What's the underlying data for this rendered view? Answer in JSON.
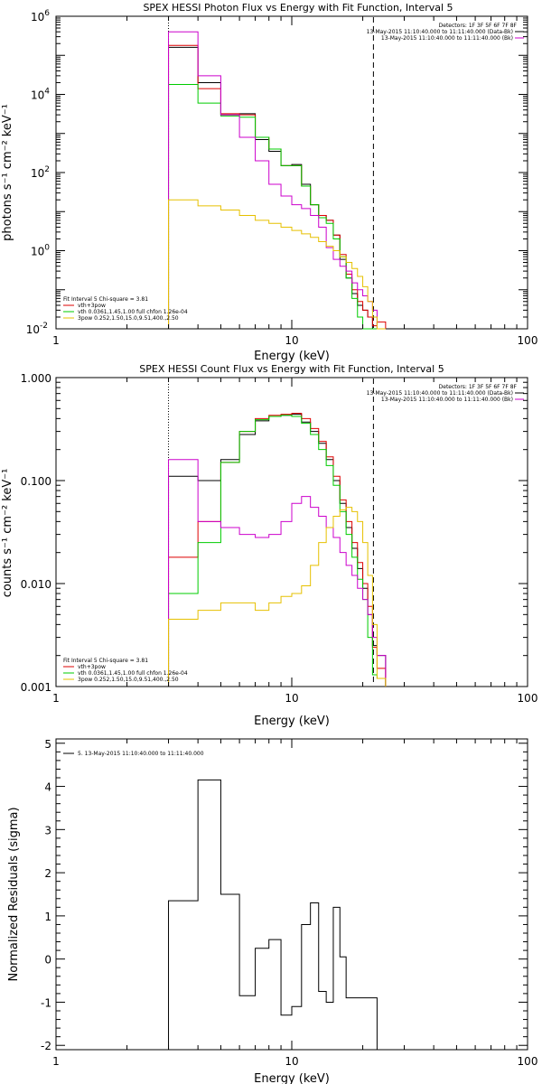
{
  "chart_data": [
    {
      "type": "line",
      "title": "SPEX HESSI Photon Flux vs Energy with Fit Function, Interval 5",
      "xlabel": "Energy (keV)",
      "ylabel": "photons s⁻¹ cm⁻² keV⁻¹",
      "xscale": "log",
      "yscale": "log",
      "xlim": [
        1,
        100
      ],
      "ylim": [
        0.01,
        1000000
      ],
      "x_ticks": [
        {
          "value": 1,
          "label": "1"
        },
        {
          "value": 10,
          "label": "10"
        },
        {
          "value": 100,
          "label": "100"
        }
      ],
      "y_ticks": [
        {
          "value": 0.01,
          "label": "10",
          "exp": "-2"
        },
        {
          "value": 1,
          "label": "10",
          "exp": "0"
        },
        {
          "value": 100,
          "label": "10",
          "exp": "2"
        },
        {
          "value": 10000,
          "label": "10",
          "exp": "4"
        },
        {
          "value": 1000000,
          "label": "10",
          "exp": "6"
        }
      ],
      "bin_edges": [
        3,
        4,
        5,
        6,
        7,
        8,
        9,
        10,
        11,
        12,
        13,
        14,
        15,
        16,
        17,
        18,
        19,
        20,
        21,
        22,
        23,
        25
      ],
      "vlines": [
        {
          "x": 3,
          "style": "dotted"
        },
        {
          "x": 22.2,
          "style": "dashed"
        }
      ],
      "legend_right": {
        "detectors": "Detectors: 1F 3F 5F 6F 7F 8F",
        "entries": [
          {
            "text": "13-May-2015 11:10:40.000 to 11:11:40.000 (Data-Bk)",
            "color": "#000000"
          },
          {
            "text": "13-May-2015 11:10:40.000 to 11:11:40.000 (Bk)",
            "color": "#cc00cc"
          }
        ]
      },
      "legend_left": {
        "header": "Fit Interval 5    Chi-square = 3.81",
        "entries": [
          {
            "text": "vth+3pow",
            "color": "#dd0000"
          },
          {
            "text": "vth 0.0361,1.45,1.00  full chfon 1.26e-04",
            "color": "#00cc00"
          },
          {
            "text": "3pow 0.252,1.50,15.0,9.51,400.,2.50",
            "color": "#e6c000"
          }
        ]
      },
      "series": [
        {
          "color": "#000000",
          "values": [
            160000,
            20000,
            3000,
            3200,
            700,
            350,
            150,
            160,
            50,
            15,
            8,
            6,
            2.5,
            0.6,
            0.2,
            0.08,
            0.04,
            0.03,
            0.02,
            0.01,
            0.004
          ]
        },
        {
          "color": "#dd0000",
          "values": [
            180000,
            14000,
            3200,
            3000,
            800,
            400,
            150,
            150,
            45,
            15,
            8,
            6,
            2.5,
            0.8,
            0.25,
            0.1,
            0.05,
            0.03,
            0.02,
            0.012,
            0.015
          ]
        },
        {
          "color": "#00cc00",
          "values": [
            18000,
            6000,
            2800,
            2600,
            800,
            400,
            150,
            150,
            45,
            15,
            7,
            5,
            2,
            0.7,
            0.2,
            0.06,
            0.02,
            0.01,
            0.008,
            0.006,
            0.005
          ]
        },
        {
          "color": "#cc00cc",
          "values": [
            400000,
            30000,
            3000,
            800,
            200,
            50,
            25,
            15,
            12,
            8,
            4,
            1.2,
            0.6,
            0.4,
            0.3,
            0.15,
            0.1,
            0.07,
            0.05,
            0.03,
            0.01
          ]
        },
        {
          "color": "#e6c000",
          "values": [
            20,
            14,
            11,
            8,
            6,
            5,
            4,
            3.3,
            2.7,
            2.2,
            1.7,
            1.3,
            1,
            0.7,
            0.5,
            0.35,
            0.22,
            0.12,
            0.05,
            0.02,
            0.008
          ]
        }
      ]
    },
    {
      "type": "line",
      "title": "SPEX HESSI Count Flux vs Energy with Fit Function, Interval 5",
      "xlabel": "Energy (keV)",
      "ylabel": "counts s⁻¹ cm⁻² keV⁻¹",
      "xscale": "log",
      "yscale": "log",
      "xlim": [
        1,
        100
      ],
      "ylim": [
        0.001,
        1
      ],
      "x_ticks": [
        {
          "value": 1,
          "label": "1"
        },
        {
          "value": 10,
          "label": "10"
        },
        {
          "value": 100,
          "label": "100"
        }
      ],
      "y_ticks": [
        {
          "value": 0.001,
          "label": "0.001"
        },
        {
          "value": 0.01,
          "label": "0.010"
        },
        {
          "value": 0.1,
          "label": "0.100"
        },
        {
          "value": 1,
          "label": "1.000"
        }
      ],
      "bin_edges": [
        3,
        4,
        5,
        6,
        7,
        8,
        9,
        10,
        11,
        12,
        13,
        14,
        15,
        16,
        17,
        18,
        19,
        20,
        21,
        22,
        23,
        25
      ],
      "vlines": [
        {
          "x": 3,
          "style": "dotted"
        },
        {
          "x": 22.2,
          "style": "dashed"
        }
      ],
      "legend_right": {
        "detectors": "Detectors: 1F 3F 5F 6F 7F 8F",
        "entries": [
          {
            "text": "13-May-2015 11:10:40.000 to 11:11:40.000 (Data-Bk)",
            "color": "#000000"
          },
          {
            "text": "13-May-2015 11:10:40.000 to 11:11:40.000 (Bk)",
            "color": "#cc00cc"
          }
        ]
      },
      "legend_left": {
        "header": "Fit Interval 5    Chi-square = 3.81",
        "entries": [
          {
            "text": "vth+3pow",
            "color": "#dd0000"
          },
          {
            "text": "vth 0.0361,1.45,1.00  full chfon 1.26e-04",
            "color": "#00cc00"
          },
          {
            "text": "3pow 0.252,1.50,15.0,9.51,400.,2.50",
            "color": "#e6c000"
          }
        ]
      },
      "series": [
        {
          "color": "#000000",
          "values": [
            0.11,
            0.1,
            0.16,
            0.28,
            0.38,
            0.42,
            0.43,
            0.44,
            0.37,
            0.3,
            0.23,
            0.16,
            0.1,
            0.06,
            0.035,
            0.022,
            0.014,
            0.009,
            0.005,
            0.0025,
            0.002
          ]
        },
        {
          "color": "#dd0000",
          "values": [
            0.018,
            0.04,
            0.15,
            0.3,
            0.4,
            0.43,
            0.44,
            0.45,
            0.4,
            0.32,
            0.24,
            0.17,
            0.11,
            0.065,
            0.04,
            0.025,
            0.016,
            0.01,
            0.006,
            0.0024,
            0.0015
          ]
        },
        {
          "color": "#00cc00",
          "values": [
            0.008,
            0.025,
            0.15,
            0.3,
            0.39,
            0.42,
            0.43,
            0.42,
            0.36,
            0.28,
            0.2,
            0.14,
            0.09,
            0.05,
            0.03,
            0.018,
            0.011,
            0.007,
            0.003,
            0.0013,
            0.0012
          ]
        },
        {
          "color": "#cc00cc",
          "values": [
            0.16,
            0.04,
            0.035,
            0.03,
            0.028,
            0.03,
            0.04,
            0.06,
            0.07,
            0.055,
            0.045,
            0.035,
            0.028,
            0.02,
            0.015,
            0.012,
            0.009,
            0.007,
            0.005,
            0.003,
            0.002
          ]
        },
        {
          "color": "#e6c000",
          "values": [
            0.0045,
            0.0055,
            0.0065,
            0.0065,
            0.0055,
            0.0065,
            0.0075,
            0.008,
            0.0095,
            0.015,
            0.025,
            0.035,
            0.045,
            0.052,
            0.055,
            0.05,
            0.04,
            0.025,
            0.012,
            0.004,
            0.0012
          ]
        }
      ]
    },
    {
      "type": "line",
      "title": "",
      "xlabel": "Energy (keV)",
      "ylabel": "Normalized Residuals (sigma)",
      "xscale": "log",
      "yscale": "linear",
      "xlim": [
        1,
        100
      ],
      "ylim": [
        -2.1,
        5.1
      ],
      "x_ticks": [
        {
          "value": 1,
          "label": "1"
        },
        {
          "value": 10,
          "label": "10"
        },
        {
          "value": 100,
          "label": "100"
        }
      ],
      "y_ticks": [
        {
          "value": -2,
          "label": "-2"
        },
        {
          "value": -1,
          "label": "-1"
        },
        {
          "value": 0,
          "label": "0"
        },
        {
          "value": 1,
          "label": "1"
        },
        {
          "value": 2,
          "label": "2"
        },
        {
          "value": 3,
          "label": "3"
        },
        {
          "value": 4,
          "label": "4"
        },
        {
          "value": 5,
          "label": "5"
        }
      ],
      "bin_edges": [
        3,
        4,
        5,
        6,
        7,
        8,
        9,
        10,
        11,
        12,
        13,
        14,
        15,
        16,
        17,
        18,
        19,
        20,
        21,
        22,
        23
      ],
      "legend_left": {
        "header": "",
        "entries": [
          {
            "text": "5. 13-May-2015 11:10:40.000 to 11:11:40.000",
            "color": "#000000"
          }
        ]
      },
      "series": [
        {
          "color": "#000000",
          "values": [
            1.35,
            4.15,
            1.5,
            -0.85,
            0.25,
            0.45,
            -1.3,
            -1.1,
            0.8,
            1.3,
            -0.75,
            -1.0,
            1.2,
            0.05,
            -0.9,
            -0.9,
            -0.9,
            -0.9,
            -0.9,
            -0.9
          ]
        }
      ]
    }
  ]
}
